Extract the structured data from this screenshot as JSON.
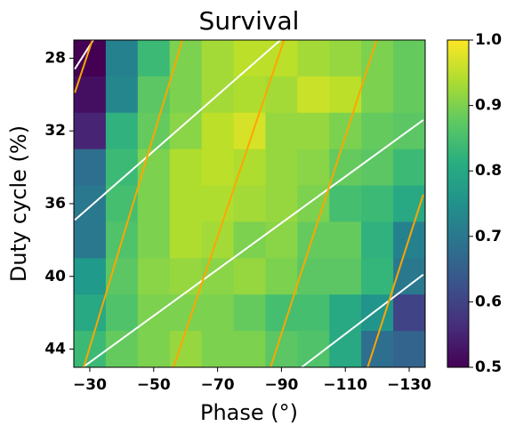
{
  "chart_data": {
    "type": "heatmap",
    "title": "Survival",
    "xlabel": "Phase (°)",
    "ylabel": "Duty cycle (%)",
    "x": [
      -30,
      -40,
      -50,
      -60,
      -70,
      -80,
      -90,
      -100,
      -110,
      -120,
      -130
    ],
    "y": [
      28,
      30,
      32,
      34,
      36,
      38,
      40,
      42,
      44
    ],
    "values": [
      [
        0.5,
        0.72,
        0.84,
        0.9,
        0.93,
        0.95,
        0.95,
        0.93,
        0.92,
        0.9,
        0.88
      ],
      [
        0.52,
        0.73,
        0.87,
        0.9,
        0.93,
        0.94,
        0.93,
        0.96,
        0.95,
        0.9,
        0.88
      ],
      [
        0.55,
        0.82,
        0.88,
        0.91,
        0.95,
        0.97,
        0.92,
        0.92,
        0.9,
        0.88,
        0.87
      ],
      [
        0.68,
        0.84,
        0.9,
        0.94,
        0.95,
        0.94,
        0.92,
        0.91,
        0.88,
        0.87,
        0.84
      ],
      [
        0.7,
        0.85,
        0.9,
        0.94,
        0.94,
        0.93,
        0.92,
        0.9,
        0.85,
        0.84,
        0.8
      ],
      [
        0.7,
        0.86,
        0.9,
        0.94,
        0.93,
        0.9,
        0.91,
        0.88,
        0.88,
        0.82,
        0.72
      ],
      [
        0.77,
        0.87,
        0.91,
        0.92,
        0.91,
        0.92,
        0.9,
        0.87,
        0.87,
        0.83,
        0.7
      ],
      [
        0.8,
        0.86,
        0.9,
        0.9,
        0.9,
        0.88,
        0.85,
        0.85,
        0.8,
        0.76,
        0.6
      ],
      [
        0.84,
        0.88,
        0.9,
        0.92,
        0.9,
        0.9,
        0.87,
        0.86,
        0.8,
        0.68,
        0.66
      ]
    ],
    "colormap": "viridis",
    "clim": [
      0.5,
      1.0
    ],
    "cticks": [
      0.5,
      0.6,
      0.7,
      0.8,
      0.9,
      {
        "value": 1,
        "label": "1.0"
      }
    ],
    "xlim": [
      -25,
      -135
    ],
    "ylim": [
      27,
      45
    ],
    "xticks": [
      {
        "value": -30,
        "label": "−30"
      },
      {
        "value": -50,
        "label": "−50"
      },
      {
        "value": -70,
        "label": "−70"
      },
      {
        "value": -90,
        "label": "−90"
      },
      {
        "value": -110,
        "label": "−110"
      },
      {
        "value": -130,
        "label": "−130"
      }
    ],
    "yticks": [
      28,
      32,
      36,
      40,
      44
    ],
    "lines": [
      {
        "color": "#ffffff",
        "x": [
          -25.3,
          -31.1
        ],
        "y": [
          28.6,
          27
        ]
      },
      {
        "color": "#ffffff",
        "x": [
          -25.3,
          -89.7
        ],
        "y": [
          36.9,
          27
        ]
      },
      {
        "color": "#ffffff",
        "x": [
          -27.8,
          -134.4
        ],
        "y": [
          45,
          31.4
        ]
      },
      {
        "color": "#ffffff",
        "x": [
          -96.3,
          -134.4
        ],
        "y": [
          45,
          39.9
        ]
      },
      {
        "color": "#ffa500",
        "x": [
          -25.3,
          -30.8
        ],
        "y": [
          29.9,
          27
        ]
      },
      {
        "color": "#ffa500",
        "x": [
          -28.1,
          -59.0
        ],
        "y": [
          45,
          27
        ]
      },
      {
        "color": "#ffa500",
        "x": [
          -56.2,
          -90.8
        ],
        "y": [
          45,
          27
        ]
      },
      {
        "color": "#ffa500",
        "x": [
          -86.6,
          -119.8
        ],
        "y": [
          45,
          27
        ]
      },
      {
        "color": "#ffa500",
        "x": [
          -117.0,
          -134.4
        ],
        "y": [
          45,
          35.5
        ]
      }
    ]
  }
}
